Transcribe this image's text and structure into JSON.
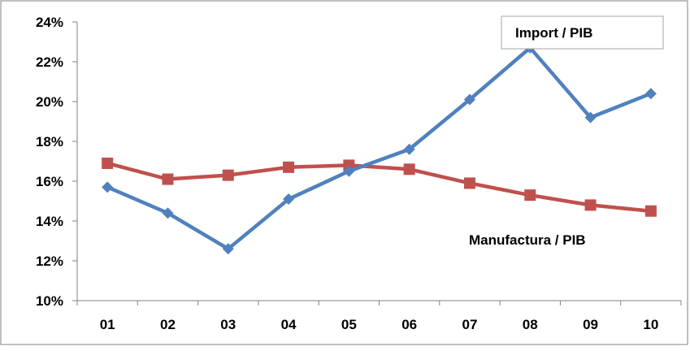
{
  "chart_data": {
    "type": "line",
    "title": "",
    "xlabel": "",
    "ylabel": "",
    "categories": [
      "01",
      "02",
      "03",
      "04",
      "05",
      "06",
      "07",
      "08",
      "09",
      "10"
    ],
    "y_tick_labels": [
      "10%",
      "12%",
      "14%",
      "16%",
      "18%",
      "20%",
      "22%",
      "24%"
    ],
    "ylim": [
      0.1,
      0.24
    ],
    "grid": false,
    "series": [
      {
        "name": "Import / PIB",
        "color": "#4F81BD",
        "marker": "diamond",
        "values": [
          0.157,
          0.144,
          0.126,
          0.151,
          0.165,
          0.176,
          0.201,
          0.227,
          0.192,
          0.204
        ]
      },
      {
        "name": "Manufactura / PIB",
        "color": "#C0504D",
        "marker": "square",
        "values": [
          0.169,
          0.161,
          0.163,
          0.167,
          0.168,
          0.166,
          0.159,
          0.153,
          0.148,
          0.145
        ]
      }
    ]
  }
}
